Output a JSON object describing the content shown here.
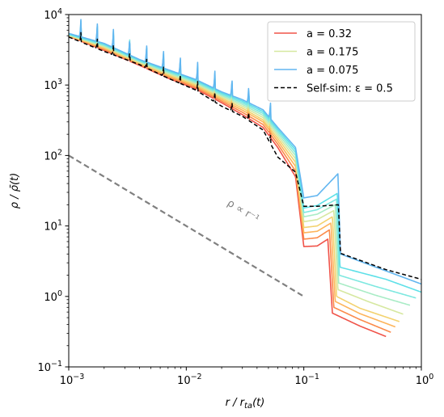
{
  "chart_data": {
    "type": "line",
    "xscale": "log",
    "yscale": "log",
    "xlim": [
      0.001,
      1
    ],
    "ylim": [
      0.1,
      10000
    ],
    "xlabel": "r / r_ta(t)",
    "ylabel": "ρ / ρ̄(t)",
    "x_ticks": [
      {
        "value": 0.001,
        "base": "10",
        "exp": "−3"
      },
      {
        "value": 0.01,
        "base": "10",
        "exp": "−2"
      },
      {
        "value": 0.1,
        "base": "10",
        "exp": "−1"
      },
      {
        "value": 1,
        "base": "10",
        "exp": "0"
      }
    ],
    "y_ticks": [
      {
        "value": 0.1,
        "base": "10",
        "exp": "−1"
      },
      {
        "value": 1,
        "base": "10",
        "exp": "0"
      },
      {
        "value": 10,
        "base": "10",
        "exp": "1"
      },
      {
        "value": 100,
        "base": "10",
        "exp": "2"
      },
      {
        "value": 1000,
        "base": "10",
        "exp": "3"
      },
      {
        "value": 10000,
        "base": "10",
        "exp": "4"
      }
    ],
    "caustics_x": [
      0.00127,
      0.00175,
      0.0024,
      0.0033,
      0.0046,
      0.0064,
      0.0089,
      0.0125,
      0.0175,
      0.0245,
      0.034,
      0.052,
      0.09,
      0.2
    ],
    "series": [
      {
        "name": "a = 0.32",
        "a": 0.32,
        "color": "#f05349",
        "in_legend": true,
        "points": [
          [
            0.001,
            4900
          ],
          [
            0.002,
            3100
          ],
          [
            0.004,
            1900
          ],
          [
            0.007,
            1250
          ],
          [
            0.012,
            880
          ],
          [
            0.02,
            560
          ],
          [
            0.03,
            380
          ],
          [
            0.045,
            250
          ],
          [
            0.06,
            130
          ],
          [
            0.085,
            50
          ],
          [
            0.1,
            5.1
          ],
          [
            0.13,
            5.2
          ],
          [
            0.16,
            6.5
          ],
          [
            0.175,
            0.58
          ],
          [
            0.3,
            0.38
          ],
          [
            0.5,
            0.27
          ]
        ]
      },
      {
        "name": "",
        "a": 0.29,
        "color": "#fb8a4a",
        "in_legend": false,
        "points": [
          [
            0.001,
            4950
          ],
          [
            0.002,
            3200
          ],
          [
            0.004,
            1950
          ],
          [
            0.007,
            1300
          ],
          [
            0.012,
            920
          ],
          [
            0.02,
            590
          ],
          [
            0.03,
            410
          ],
          [
            0.045,
            275
          ],
          [
            0.06,
            145
          ],
          [
            0.085,
            60
          ],
          [
            0.1,
            6.5
          ],
          [
            0.13,
            6.8
          ],
          [
            0.165,
            8.8
          ],
          [
            0.18,
            0.7
          ],
          [
            0.3,
            0.47
          ],
          [
            0.55,
            0.31
          ]
        ]
      },
      {
        "name": "",
        "a": 0.26,
        "color": "#fdb45b",
        "in_legend": false,
        "points": [
          [
            0.001,
            5000
          ],
          [
            0.002,
            3300
          ],
          [
            0.004,
            2000
          ],
          [
            0.007,
            1350
          ],
          [
            0.012,
            960
          ],
          [
            0.02,
            620
          ],
          [
            0.03,
            440
          ],
          [
            0.045,
            300
          ],
          [
            0.06,
            160
          ],
          [
            0.085,
            70
          ],
          [
            0.1,
            8.0
          ],
          [
            0.13,
            8.4
          ],
          [
            0.17,
            11
          ],
          [
            0.185,
            0.85
          ],
          [
            0.3,
            0.57
          ],
          [
            0.6,
            0.37
          ]
        ]
      },
      {
        "name": "",
        "a": 0.235,
        "color": "#f3d26f",
        "in_legend": false,
        "points": [
          [
            0.001,
            5050
          ],
          [
            0.002,
            3400
          ],
          [
            0.004,
            2050
          ],
          [
            0.007,
            1400
          ],
          [
            0.012,
            1000
          ],
          [
            0.02,
            650
          ],
          [
            0.03,
            470
          ],
          [
            0.045,
            320
          ],
          [
            0.06,
            175
          ],
          [
            0.085,
            80
          ],
          [
            0.1,
            9.5
          ],
          [
            0.13,
            10
          ],
          [
            0.175,
            13.5
          ],
          [
            0.19,
            1.0
          ],
          [
            0.3,
            0.68
          ],
          [
            0.65,
            0.44
          ]
        ]
      },
      {
        "name": "a = 0.175",
        "a": 0.175,
        "color": "#d6e8a0",
        "in_legend": true,
        "points": [
          [
            0.001,
            5100
          ],
          [
            0.002,
            3500
          ],
          [
            0.004,
            2100
          ],
          [
            0.007,
            1450
          ],
          [
            0.012,
            1040
          ],
          [
            0.02,
            680
          ],
          [
            0.03,
            500
          ],
          [
            0.045,
            345
          ],
          [
            0.06,
            190
          ],
          [
            0.085,
            90
          ],
          [
            0.1,
            11.5
          ],
          [
            0.13,
            12.3
          ],
          [
            0.18,
            16.5
          ],
          [
            0.195,
            1.25
          ],
          [
            0.35,
            0.85
          ],
          [
            0.7,
            0.56
          ]
        ]
      },
      {
        "name": "",
        "a": 0.15,
        "color": "#a9ecc6",
        "in_legend": false,
        "points": [
          [
            0.001,
            5150
          ],
          [
            0.002,
            3600
          ],
          [
            0.004,
            2150
          ],
          [
            0.007,
            1500
          ],
          [
            0.012,
            1080
          ],
          [
            0.02,
            710
          ],
          [
            0.03,
            530
          ],
          [
            0.045,
            370
          ],
          [
            0.06,
            205
          ],
          [
            0.085,
            100
          ],
          [
            0.1,
            13.5
          ],
          [
            0.13,
            14.7
          ],
          [
            0.185,
            20
          ],
          [
            0.198,
            1.55
          ],
          [
            0.4,
            1.05
          ],
          [
            0.8,
            0.75
          ]
        ]
      },
      {
        "name": "",
        "a": 0.125,
        "color": "#7ee8e0",
        "in_legend": false,
        "points": [
          [
            0.001,
            5200
          ],
          [
            0.002,
            3700
          ],
          [
            0.004,
            2200
          ],
          [
            0.007,
            1550
          ],
          [
            0.012,
            1120
          ],
          [
            0.02,
            740
          ],
          [
            0.03,
            560
          ],
          [
            0.045,
            395
          ],
          [
            0.06,
            220
          ],
          [
            0.085,
            110
          ],
          [
            0.1,
            15.5
          ],
          [
            0.13,
            17
          ],
          [
            0.19,
            24
          ],
          [
            0.2,
            2.0
          ],
          [
            0.4,
            1.4
          ],
          [
            0.9,
            0.95
          ]
        ]
      },
      {
        "name": "",
        "a": 0.1,
        "color": "#5ee0e8",
        "in_legend": false,
        "points": [
          [
            0.001,
            5300
          ],
          [
            0.002,
            3800
          ],
          [
            0.004,
            2250
          ],
          [
            0.007,
            1600
          ],
          [
            0.012,
            1160
          ],
          [
            0.02,
            770
          ],
          [
            0.03,
            590
          ],
          [
            0.045,
            420
          ],
          [
            0.06,
            235
          ],
          [
            0.085,
            120
          ],
          [
            0.1,
            18
          ],
          [
            0.13,
            19.5
          ],
          [
            0.193,
            29
          ],
          [
            0.203,
            2.6
          ],
          [
            0.5,
            1.75
          ],
          [
            1.0,
            1.15
          ]
        ]
      },
      {
        "name": "a = 0.075",
        "a": 0.075,
        "color": "#62b6f0",
        "in_legend": true,
        "points": [
          [
            0.001,
            5400
          ],
          [
            0.002,
            3900
          ],
          [
            0.004,
            2300
          ],
          [
            0.007,
            1650
          ],
          [
            0.012,
            1200
          ],
          [
            0.02,
            800
          ],
          [
            0.03,
            620
          ],
          [
            0.045,
            445
          ],
          [
            0.06,
            250
          ],
          [
            0.085,
            130
          ],
          [
            0.1,
            25
          ],
          [
            0.13,
            27
          ],
          [
            0.195,
            55
          ],
          [
            0.205,
            4.0
          ],
          [
            0.5,
            2.3
          ],
          [
            1.0,
            1.5
          ]
        ]
      },
      {
        "name": "Self-sim: ε = 0.5",
        "a": null,
        "color": "#000000",
        "dash": "5,3",
        "in_legend": true,
        "points": [
          [
            0.001,
            4800
          ],
          [
            0.002,
            3000
          ],
          [
            0.004,
            1950
          ],
          [
            0.007,
            1250
          ],
          [
            0.012,
            850
          ],
          [
            0.02,
            500
          ],
          [
            0.03,
            360
          ],
          [
            0.045,
            230
          ],
          [
            0.06,
            95
          ],
          [
            0.085,
            58
          ],
          [
            0.1,
            19
          ],
          [
            0.13,
            19
          ],
          [
            0.197,
            20
          ],
          [
            0.205,
            4.1
          ],
          [
            0.5,
            2.4
          ],
          [
            1.0,
            1.75
          ]
        ]
      }
    ],
    "reference_line": {
      "label": "ρ ∝ r⁻¹",
      "color": "#808080",
      "points": [
        [
          0.001,
          100
        ],
        [
          0.1,
          1
        ]
      ]
    },
    "legend": {
      "position": "top-right"
    }
  }
}
